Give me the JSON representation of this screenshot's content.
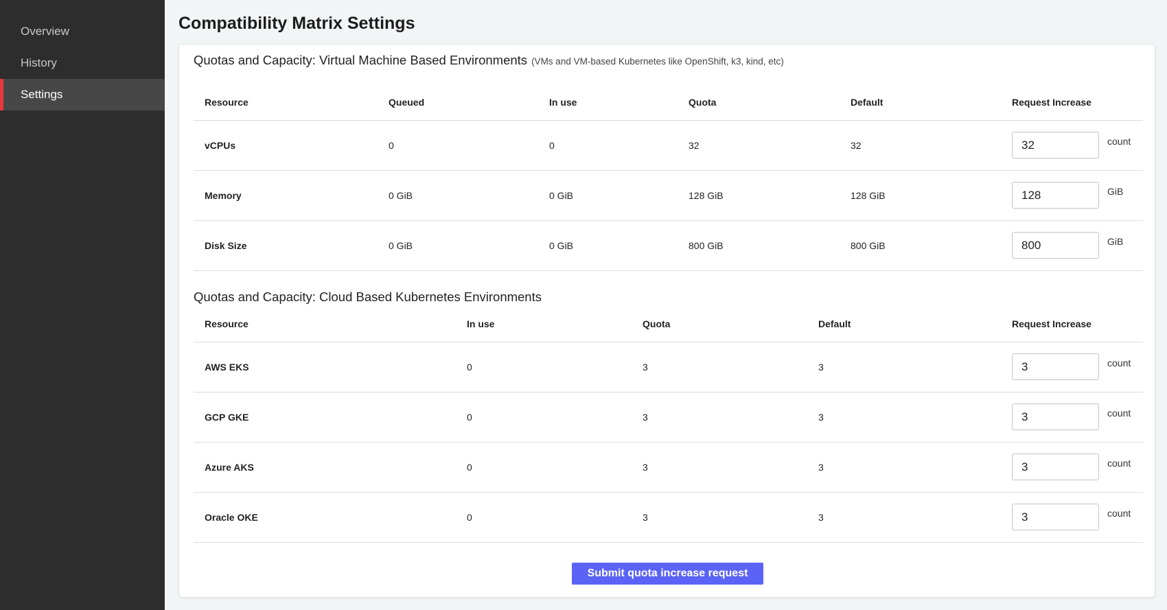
{
  "sidebar": {
    "items": [
      {
        "label": "Overview",
        "active": false
      },
      {
        "label": "History",
        "active": false
      },
      {
        "label": "Settings",
        "active": true
      }
    ]
  },
  "page_title": "Compatibility Matrix Settings",
  "vm": {
    "title": "Quotas and Capacity: Virtual Machine Based Environments",
    "subtitle": "(VMs and VM-based Kubernetes like OpenShift, k3, kind, etc)",
    "headers": [
      "Resource",
      "Queued",
      "In use",
      "Quota",
      "Default",
      "Request Increase"
    ],
    "rows": [
      {
        "resource": "vCPUs",
        "queued": "0",
        "in_use": "0",
        "quota": "32",
        "default": "32",
        "request": "32",
        "unit": "count"
      },
      {
        "resource": "Memory",
        "queued": "0 GiB",
        "in_use": "0 GiB",
        "quota": "128 GiB",
        "default": "128 GiB",
        "request": "128",
        "unit": "GiB"
      },
      {
        "resource": "Disk Size",
        "queued": "0 GiB",
        "in_use": "0 GiB",
        "quota": "800 GiB",
        "default": "800 GiB",
        "request": "800",
        "unit": "GiB"
      }
    ]
  },
  "cloud": {
    "title": "Quotas and Capacity: Cloud Based Kubernetes Environments",
    "headers": [
      "Resource",
      "In use",
      "Quota",
      "Default",
      "Request Increase"
    ],
    "rows": [
      {
        "resource": "AWS EKS",
        "in_use": "0",
        "quota": "3",
        "default": "3",
        "request": "3",
        "unit": "count"
      },
      {
        "resource": "GCP GKE",
        "in_use": "0",
        "quota": "3",
        "default": "3",
        "request": "3",
        "unit": "count"
      },
      {
        "resource": "Azure AKS",
        "in_use": "0",
        "quota": "3",
        "default": "3",
        "request": "3",
        "unit": "count"
      },
      {
        "resource": "Oracle OKE",
        "in_use": "0",
        "quota": "3",
        "default": "3",
        "request": "3",
        "unit": "count"
      }
    ]
  },
  "submit_label": "Submit quota increase request",
  "colors": {
    "accent": "#5b63f6",
    "active_marker": "#e8383d",
    "sidebar": "#2d2d2d"
  }
}
